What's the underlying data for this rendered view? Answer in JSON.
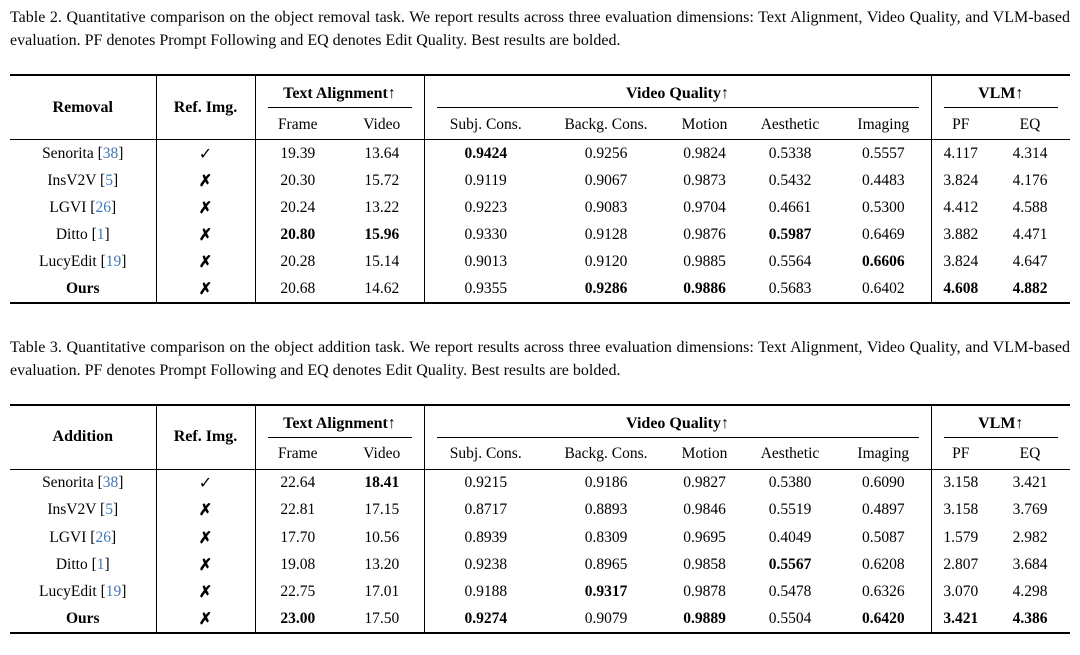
{
  "page": {
    "colors": {
      "citation": "#4076b8",
      "text": "#000000",
      "background": "#ffffff",
      "rule": "#000000"
    }
  },
  "icons": {
    "check": "✓",
    "cross": "✗"
  },
  "tables": [
    {
      "caption": "Table 2. Quantitative comparison on the object removal task. We report results across three evaluation dimensions: Text Alignment, Video Quality, and VLM-based evaluation. PF denotes Prompt Following and EQ denotes Edit Quality. Best results are bolded.",
      "first_col_header": "Removal",
      "ref_img_header": "Ref. Img.",
      "groups": [
        {
          "label": "Text Alignment↑",
          "cols": [
            "Frame",
            "Video"
          ]
        },
        {
          "label": "Video Quality↑",
          "cols": [
            "Subj. Cons.",
            "Backg. Cons.",
            "Motion",
            "Aesthetic",
            "Imaging"
          ]
        },
        {
          "label": "VLM↑",
          "cols": [
            "PF",
            "EQ"
          ]
        }
      ],
      "rows": [
        {
          "method": "Senorita",
          "cite": "38",
          "ref": "check",
          "bold_method": false,
          "values": [
            "19.39",
            "13.64",
            "0.9424",
            "0.9256",
            "0.9824",
            "0.5338",
            "0.5557",
            "4.117",
            "4.314"
          ],
          "bold": [
            0,
            0,
            1,
            0,
            0,
            0,
            0,
            0,
            0
          ]
        },
        {
          "method": "InsV2V",
          "cite": "5",
          "ref": "cross",
          "bold_method": false,
          "values": [
            "20.30",
            "15.72",
            "0.9119",
            "0.9067",
            "0.9873",
            "0.5432",
            "0.4483",
            "3.824",
            "4.176"
          ],
          "bold": [
            0,
            0,
            0,
            0,
            0,
            0,
            0,
            0,
            0
          ]
        },
        {
          "method": "LGVI",
          "cite": "26",
          "ref": "cross",
          "bold_method": false,
          "values": [
            "20.24",
            "13.22",
            "0.9223",
            "0.9083",
            "0.9704",
            "0.4661",
            "0.5300",
            "4.412",
            "4.588"
          ],
          "bold": [
            0,
            0,
            0,
            0,
            0,
            0,
            0,
            0,
            0
          ]
        },
        {
          "method": "Ditto",
          "cite": "1",
          "ref": "cross",
          "bold_method": false,
          "values": [
            "20.80",
            "15.96",
            "0.9330",
            "0.9128",
            "0.9876",
            "0.5987",
            "0.6469",
            "3.882",
            "4.471"
          ],
          "bold": [
            1,
            1,
            0,
            0,
            0,
            1,
            0,
            0,
            0
          ]
        },
        {
          "method": "LucyEdit",
          "cite": "19",
          "ref": "cross",
          "bold_method": false,
          "values": [
            "20.28",
            "15.14",
            "0.9013",
            "0.9120",
            "0.9885",
            "0.5564",
            "0.6606",
            "3.824",
            "4.647"
          ],
          "bold": [
            0,
            0,
            0,
            0,
            0,
            0,
            1,
            0,
            0
          ]
        },
        {
          "method": "Ours",
          "cite": null,
          "ref": "cross",
          "bold_method": true,
          "values": [
            "20.68",
            "14.62",
            "0.9355",
            "0.9286",
            "0.9886",
            "0.5683",
            "0.6402",
            "4.608",
            "4.882"
          ],
          "bold": [
            0,
            0,
            0,
            1,
            1,
            0,
            0,
            1,
            1
          ]
        }
      ]
    },
    {
      "caption": "Table 3. Quantitative comparison on the object addition task. We report results across three evaluation dimensions: Text Alignment, Video Quality, and VLM-based evaluation. PF denotes Prompt Following and EQ denotes Edit Quality. Best results are bolded.",
      "first_col_header": "Addition",
      "ref_img_header": "Ref. Img.",
      "groups": [
        {
          "label": "Text Alignment↑",
          "cols": [
            "Frame",
            "Video"
          ]
        },
        {
          "label": "Video Quality↑",
          "cols": [
            "Subj. Cons.",
            "Backg. Cons.",
            "Motion",
            "Aesthetic",
            "Imaging"
          ]
        },
        {
          "label": "VLM↑",
          "cols": [
            "PF",
            "EQ"
          ]
        }
      ],
      "rows": [
        {
          "method": "Senorita",
          "cite": "38",
          "ref": "check",
          "bold_method": false,
          "values": [
            "22.64",
            "18.41",
            "0.9215",
            "0.9186",
            "0.9827",
            "0.5380",
            "0.6090",
            "3.158",
            "3.421"
          ],
          "bold": [
            0,
            1,
            0,
            0,
            0,
            0,
            0,
            0,
            0
          ]
        },
        {
          "method": "InsV2V",
          "cite": "5",
          "ref": "cross",
          "bold_method": false,
          "values": [
            "22.81",
            "17.15",
            "0.8717",
            "0.8893",
            "0.9846",
            "0.5519",
            "0.4897",
            "3.158",
            "3.769"
          ],
          "bold": [
            0,
            0,
            0,
            0,
            0,
            0,
            0,
            0,
            0
          ]
        },
        {
          "method": "LGVI",
          "cite": "26",
          "ref": "cross",
          "bold_method": false,
          "values": [
            "17.70",
            "10.56",
            "0.8939",
            "0.8309",
            "0.9695",
            "0.4049",
            "0.5087",
            "1.579",
            "2.982"
          ],
          "bold": [
            0,
            0,
            0,
            0,
            0,
            0,
            0,
            0,
            0
          ]
        },
        {
          "method": "Ditto",
          "cite": "1",
          "ref": "cross",
          "bold_method": false,
          "values": [
            "19.08",
            "13.20",
            "0.9238",
            "0.8965",
            "0.9858",
            "0.5567",
            "0.6208",
            "2.807",
            "3.684"
          ],
          "bold": [
            0,
            0,
            0,
            0,
            0,
            1,
            0,
            0,
            0
          ]
        },
        {
          "method": "LucyEdit",
          "cite": "19",
          "ref": "cross",
          "bold_method": false,
          "values": [
            "22.75",
            "17.01",
            "0.9188",
            "0.9317",
            "0.9878",
            "0.5478",
            "0.6326",
            "3.070",
            "4.298"
          ],
          "bold": [
            0,
            0,
            0,
            1,
            0,
            0,
            0,
            0,
            0
          ]
        },
        {
          "method": "Ours",
          "cite": null,
          "ref": "cross",
          "bold_method": true,
          "values": [
            "23.00",
            "17.50",
            "0.9274",
            "0.9079",
            "0.9889",
            "0.5504",
            "0.6420",
            "3.421",
            "4.386"
          ],
          "bold": [
            1,
            0,
            1,
            0,
            1,
            0,
            1,
            1,
            1
          ]
        }
      ]
    }
  ]
}
